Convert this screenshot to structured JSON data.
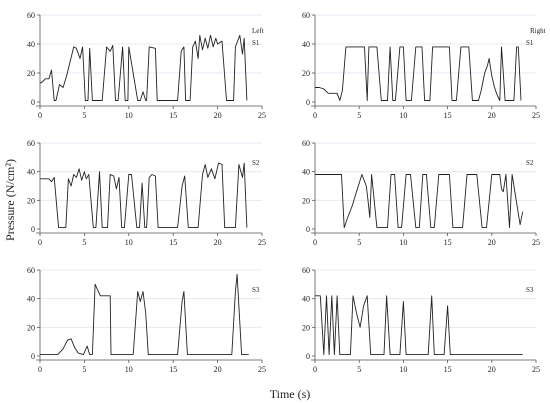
{
  "figure": {
    "ylabel": "Pressure (N/cm²)",
    "xlabel": "Time (s)",
    "left_label": "Left",
    "right_label": "Right"
  },
  "chart_data": [
    {
      "type": "line",
      "side": "left",
      "label": "S1",
      "xlim": [
        0,
        25
      ],
      "ylim": [
        0,
        60
      ],
      "xticks": [
        0,
        5,
        10,
        15,
        20,
        25
      ],
      "yticks": [
        0,
        20,
        40,
        60
      ],
      "grid": "horizontal",
      "x": [
        0,
        0.3,
        0.6,
        1,
        1.3,
        1.6,
        1.8,
        2.2,
        2.6,
        3,
        3.4,
        3.8,
        4.1,
        4.5,
        4.8,
        5.1,
        5.4,
        5.6,
        5.9,
        6.1,
        6.3,
        7,
        7.5,
        7.9,
        8.2,
        8.5,
        8.8,
        9.3,
        9.6,
        9.9,
        10,
        11,
        11.3,
        11.6,
        11.9,
        12,
        12.3,
        13,
        13.2,
        15.5,
        15.9,
        16.2,
        16.4,
        16.9,
        17.2,
        17.5,
        17.8,
        18,
        18.3,
        18.6,
        18.9,
        19.2,
        19.5,
        19.8,
        20,
        20.5,
        21,
        21.5,
        21.8,
        22,
        22.5,
        22.8,
        23,
        23.3
      ],
      "y": [
        13,
        14,
        16,
        16,
        22,
        1,
        1,
        12,
        10,
        18,
        28,
        38,
        37,
        30,
        38,
        1,
        1,
        37,
        1,
        1,
        1,
        1,
        38,
        35,
        39,
        1,
        1,
        38,
        1,
        1,
        38,
        1,
        1,
        7,
        1,
        1,
        38,
        37,
        1,
        1,
        35,
        38,
        1,
        1,
        38,
        42,
        30,
        46,
        36,
        44,
        37,
        46,
        38,
        44,
        40,
        42,
        1,
        1,
        1,
        38,
        46,
        33,
        44,
        1
      ]
    },
    {
      "type": "line",
      "side": "right",
      "label": "S1",
      "xlim": [
        0,
        25
      ],
      "ylim": [
        0,
        60
      ],
      "xticks": [
        0,
        5,
        10,
        15,
        20,
        25
      ],
      "yticks": [
        0,
        20,
        40,
        60
      ],
      "grid": "horizontal",
      "x": [
        0,
        0.5,
        1,
        1.5,
        2,
        2.5,
        2.8,
        3.1,
        3.5,
        4,
        4.5,
        5.2,
        5.6,
        5.9,
        6.1,
        6.3,
        7,
        7.5,
        8.2,
        8.5,
        8.8,
        9.1,
        9.6,
        10,
        10.3,
        10.9,
        11.4,
        11.8,
        12.1,
        12.4,
        13,
        13.3,
        13.6,
        14,
        15.2,
        15.5,
        16,
        16.5,
        17,
        17.4,
        17.8,
        18.2,
        18.5,
        18.8,
        19.2,
        19.5,
        19.7,
        20,
        20.3,
        20.6,
        20.9,
        21.1,
        21.3,
        21.5,
        22.5,
        22.8,
        23,
        23.3
      ],
      "y": [
        10,
        10,
        9,
        6,
        6,
        6,
        1,
        8,
        38,
        38,
        38,
        38,
        38,
        1,
        38,
        38,
        38,
        1,
        1,
        38,
        1,
        1,
        38,
        38,
        1,
        1,
        38,
        38,
        38,
        1,
        1,
        38,
        38,
        38,
        38,
        1,
        1,
        38,
        38,
        38,
        1,
        1,
        1,
        8,
        20,
        25,
        30,
        18,
        10,
        5,
        1,
        38,
        20,
        1,
        1,
        38,
        38,
        1
      ]
    },
    {
      "type": "line",
      "side": "left",
      "label": "S2",
      "xlim": [
        0,
        25
      ],
      "ylim": [
        0,
        60
      ],
      "xticks": [
        0,
        5,
        10,
        15,
        20,
        25
      ],
      "yticks": [
        0,
        20,
        40,
        60
      ],
      "grid": "horizontal",
      "x": [
        0,
        1,
        1.3,
        1.6,
        2.1,
        2.5,
        2.9,
        3.2,
        3.5,
        3.8,
        4.1,
        4.4,
        4.7,
        5,
        5.2,
        5.5,
        6,
        6.3,
        6.7,
        7,
        7.6,
        7.9,
        8.3,
        8.6,
        8.9,
        9.2,
        9.5,
        10,
        10.3,
        10.9,
        11.2,
        11.5,
        11.8,
        12,
        12.3,
        12.6,
        13,
        13.3,
        15.5,
        16,
        16.3,
        16.7,
        17.2,
        17.8,
        18.3,
        18.6,
        18.9,
        19.3,
        19.7,
        20.1,
        20.5,
        20.8,
        21,
        21.5,
        22,
        22.4,
        22.8,
        23,
        23.3
      ],
      "y": [
        35,
        35,
        33,
        36,
        1,
        1,
        1,
        35,
        30,
        38,
        36,
        42,
        34,
        40,
        35,
        38,
        1,
        1,
        40,
        1,
        1,
        38,
        37,
        28,
        36,
        1,
        1,
        38,
        38,
        1,
        1,
        32,
        1,
        1,
        36,
        38,
        37,
        1,
        1,
        30,
        37,
        1,
        1,
        1,
        38,
        45,
        36,
        42,
        35,
        46,
        45,
        1,
        1,
        1,
        1,
        45,
        36,
        46,
        1
      ]
    },
    {
      "type": "line",
      "side": "right",
      "label": "S2",
      "xlim": [
        0,
        25
      ],
      "ylim": [
        0,
        60
      ],
      "xticks": [
        0,
        5,
        10,
        15,
        20,
        25
      ],
      "yticks": [
        0,
        20,
        40,
        60
      ],
      "grid": "horizontal",
      "x": [
        0,
        1,
        1.5,
        2,
        2.5,
        3,
        3.3,
        3.7,
        4.2,
        4.8,
        5.3,
        5.8,
        6,
        6.2,
        6.4,
        7,
        7.8,
        8.2,
        8.6,
        9,
        9.4,
        9.8,
        10.3,
        10.8,
        11.4,
        11.8,
        12.2,
        12.6,
        13.1,
        13.5,
        14,
        14.2,
        15.2,
        15.6,
        16.1,
        16.7,
        17.2,
        17.7,
        18.3,
        18.9,
        19.4,
        20,
        20.5,
        20.9,
        21.1,
        21.3,
        21.6,
        22,
        22.3,
        23.2,
        23.5
      ],
      "y": [
        38,
        38,
        38,
        38,
        38,
        38,
        1,
        8,
        16,
        28,
        38,
        30,
        20,
        8,
        38,
        1,
        1,
        1,
        38,
        38,
        1,
        1,
        38,
        38,
        1,
        1,
        38,
        38,
        1,
        1,
        38,
        38,
        38,
        1,
        1,
        1,
        38,
        38,
        38,
        1,
        1,
        38,
        38,
        38,
        28,
        26,
        38,
        1,
        38,
        3,
        12
      ]
    },
    {
      "type": "line",
      "side": "left",
      "label": "S3",
      "xlim": [
        0,
        25
      ],
      "ylim": [
        0,
        60
      ],
      "xticks": [
        0,
        5,
        10,
        15,
        20,
        25
      ],
      "yticks": [
        0,
        20,
        40,
        60
      ],
      "grid": "horizontal",
      "x": [
        0,
        1,
        2,
        2.6,
        3.1,
        3.5,
        3.9,
        4.3,
        4.9,
        5.3,
        5.6,
        5.9,
        6.2,
        6.5,
        6.8,
        7.2,
        7.9,
        8,
        10.5,
        11,
        11.3,
        11.6,
        11.9,
        12.2,
        15.5,
        16,
        16.2,
        16.6,
        21.6,
        22,
        22.2,
        22.7,
        23.5
      ],
      "y": [
        1,
        1,
        1,
        5,
        11,
        12,
        6,
        2,
        1,
        7,
        1,
        1,
        50,
        46,
        42,
        42,
        42,
        1,
        1,
        45,
        38,
        45,
        30,
        1,
        1,
        38,
        45,
        1,
        1,
        45,
        57,
        1,
        1
      ]
    },
    {
      "type": "line",
      "side": "right",
      "label": "S3",
      "xlim": [
        0,
        25
      ],
      "ylim": [
        0,
        60
      ],
      "xticks": [
        0,
        5,
        10,
        15,
        20,
        25
      ],
      "yticks": [
        0,
        20,
        40,
        60
      ],
      "grid": "horizontal",
      "x": [
        0,
        0.3,
        0.6,
        1,
        1.3,
        1.6,
        1.9,
        2.2,
        2.5,
        2.8,
        3.5,
        4,
        4.3,
        4.7,
        5.1,
        5.5,
        5.9,
        6.3,
        7.4,
        7.8,
        8.1,
        8.5,
        9.6,
        10,
        10.3,
        12.8,
        13.2,
        13.5,
        14.6,
        15,
        15.3,
        16,
        17,
        20,
        23.5
      ],
      "y": [
        42,
        42,
        42,
        1,
        42,
        1,
        42,
        1,
        42,
        1,
        1,
        1,
        42,
        30,
        20,
        35,
        42,
        1,
        1,
        1,
        42,
        1,
        1,
        38,
        1,
        1,
        42,
        1,
        1,
        35,
        1,
        1,
        1,
        1,
        1
      ]
    }
  ]
}
